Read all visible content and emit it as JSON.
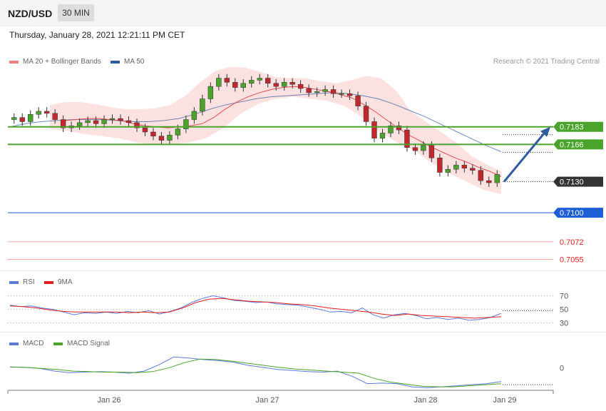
{
  "header": {
    "symbol": "NZD/USD",
    "timeframe": "30 MIN"
  },
  "datetime": "Thursday, January 28, 2021 12:21:11 PM CET",
  "credit": "Research © 2021 Trading Central",
  "legend": {
    "price": [
      {
        "label": "MA 20 + Bollinger Bands",
        "color": "#f08080"
      },
      {
        "label": "MA 50",
        "color": "#2f5c9e"
      }
    ],
    "rsi": [
      {
        "label": "RSI",
        "color": "#5b7bd5"
      },
      {
        "label": "9MA",
        "color": "#e02020"
      }
    ],
    "macd": [
      {
        "label": "MACD",
        "color": "#5b7bd5"
      },
      {
        "label": "MACD Signal",
        "color": "#4aa32a"
      }
    ]
  },
  "chart_data": [
    {
      "type": "line",
      "title": "NZD/USD 30 MIN",
      "x_ticks": [
        "Jan 26",
        "Jan 27",
        "Jan 28",
        "Jan 29"
      ],
      "ylim": [
        0.7045,
        0.724
      ],
      "price_line": 0.713,
      "levels": [
        {
          "label": "0.7183",
          "value": 0.7183,
          "kind": "resistance",
          "color": "#4aa32a"
        },
        {
          "label": "0.7166",
          "value": 0.7166,
          "kind": "resistance",
          "color": "#4aa32a"
        },
        {
          "label": "0.7130",
          "value": 0.713,
          "kind": "last",
          "color": "#333333"
        },
        {
          "label": "0.7100",
          "value": 0.71,
          "kind": "pivot",
          "color": "#1f5fd6"
        },
        {
          "label": "0.7072",
          "value": 0.7072,
          "kind": "support",
          "color": "#e02020"
        },
        {
          "label": "0.7055",
          "value": 0.7055,
          "kind": "support",
          "color": "#e02020"
        }
      ],
      "closes": [
        0.7192,
        0.7188,
        0.7195,
        0.7198,
        0.7196,
        0.719,
        0.7182,
        0.7184,
        0.7187,
        0.7189,
        0.7186,
        0.719,
        0.7191,
        0.7189,
        0.7187,
        0.7182,
        0.7178,
        0.7174,
        0.717,
        0.7175,
        0.7181,
        0.719,
        0.7198,
        0.721,
        0.7222,
        0.723,
        0.7226,
        0.7221,
        0.7225,
        0.7228,
        0.723,
        0.7225,
        0.7222,
        0.7226,
        0.7224,
        0.722,
        0.7216,
        0.7217,
        0.7219,
        0.7215,
        0.7215,
        0.7213,
        0.7203,
        0.7188,
        0.7172,
        0.7177,
        0.7184,
        0.718,
        0.7163,
        0.716,
        0.7165,
        0.7153,
        0.7139,
        0.7142,
        0.7146,
        0.7143,
        0.7141,
        0.7131,
        0.7129,
        0.7137
      ],
      "ma20": [
        0.7189,
        0.719,
        0.7191,
        0.7191,
        0.719,
        0.7189,
        0.7186,
        0.7184,
        0.7183,
        0.7182,
        0.7183,
        0.7184,
        0.7186,
        0.7192,
        0.72,
        0.7207,
        0.7212,
        0.7216,
        0.7219,
        0.7221,
        0.7222,
        0.7221,
        0.7219,
        0.7217,
        0.7214,
        0.7211,
        0.7205,
        0.7198,
        0.719,
        0.7182,
        0.7175,
        0.7169,
        0.7163,
        0.7158,
        0.7153,
        0.7149,
        0.7144,
        0.714,
        0.7135
      ],
      "ma50": [
        0.7183,
        0.7186,
        0.7188,
        0.7189,
        0.719,
        0.719,
        0.719,
        0.7189,
        0.7188,
        0.7188,
        0.7189,
        0.7191,
        0.7195,
        0.72,
        0.7204,
        0.7207,
        0.721,
        0.7212,
        0.7213,
        0.7214,
        0.7215,
        0.7216,
        0.7215,
        0.7213,
        0.721,
        0.7205,
        0.7199,
        0.7193,
        0.7186,
        0.7179,
        0.7172,
        0.7165,
        0.7159
      ],
      "bb_upper": [
        0.7204,
        0.7207,
        0.7207,
        0.7205,
        0.7202,
        0.72,
        0.72,
        0.7201,
        0.7204,
        0.7213,
        0.7226,
        0.7237,
        0.7241,
        0.724,
        0.7236,
        0.7231,
        0.723,
        0.723,
        0.7227,
        0.7225,
        0.7228,
        0.7232,
        0.723,
        0.7218,
        0.7198,
        0.7188,
        0.7178,
        0.7168,
        0.7155,
        0.7147,
        0.714
      ],
      "bb_lower": [
        0.7181,
        0.7179,
        0.7176,
        0.7174,
        0.7172,
        0.7168,
        0.7166,
        0.7166,
        0.7168,
        0.7172,
        0.7182,
        0.7196,
        0.7205,
        0.721,
        0.7212,
        0.721,
        0.7208,
        0.7203,
        0.7192,
        0.7178,
        0.7168,
        0.716,
        0.7148,
        0.7138,
        0.713,
        0.7122,
        0.7118
      ]
    },
    {
      "type": "line",
      "title": "RSI",
      "yticks": [
        70,
        50,
        30
      ],
      "ylim": [
        20,
        80
      ],
      "series": [
        {
          "name": "RSI",
          "values": [
            56,
            54,
            55,
            52,
            50,
            46,
            42,
            45,
            44,
            46,
            44,
            47,
            45,
            48,
            43,
            47,
            52,
            60,
            66,
            70,
            67,
            63,
            62,
            60,
            61,
            58,
            57,
            56,
            53,
            50,
            46,
            47,
            45,
            52,
            42,
            37,
            42,
            44,
            41,
            36,
            38,
            35,
            37,
            34,
            35,
            38,
            44
          ]
        },
        {
          "name": "9MA",
          "values": [
            55,
            54,
            52,
            49,
            47,
            46,
            46,
            46,
            46,
            45,
            46,
            45,
            46,
            52,
            60,
            65,
            66,
            64,
            62,
            61,
            60,
            58,
            57,
            55,
            52,
            50,
            48,
            46,
            43,
            41,
            43,
            41,
            40,
            39,
            38,
            37,
            38,
            39
          ]
        }
      ]
    },
    {
      "type": "line",
      "title": "MACD",
      "yticks": [
        0
      ],
      "ylim": [
        -0.004,
        0.0035
      ],
      "series": [
        {
          "name": "MACD",
          "values": [
            0.0002,
            0.0001,
            -0.0001,
            -0.0006,
            -0.0009,
            -0.0008,
            -0.0007,
            -0.0008,
            -0.001,
            -0.0006,
            0.0006,
            0.0021,
            0.0019,
            0.0016,
            0.0014,
            0.0011,
            0.0005,
            0.0001,
            -0.0003,
            -0.0005,
            -0.0007,
            -0.0008,
            -0.0006,
            -0.0016,
            -0.003,
            -0.0029,
            -0.003,
            -0.0036,
            -0.0038,
            -0.0036,
            -0.0034,
            -0.0032,
            -0.003,
            -0.0026
          ]
        },
        {
          "name": "MACD Signal",
          "values": [
            0.0002,
            0.0001,
            -0.0001,
            -0.0003,
            -0.0006,
            -0.0007,
            -0.0008,
            -0.0008,
            -0.0009,
            -0.0007,
            0.0,
            0.001,
            0.0017,
            0.0016,
            0.0013,
            0.0009,
            0.0005,
            0.0001,
            -0.0002,
            -0.0004,
            -0.0006,
            -0.0008,
            -0.001,
            -0.002,
            -0.0027,
            -0.0031,
            -0.0035,
            -0.0036,
            -0.0036,
            -0.0034,
            -0.0032,
            -0.003
          ]
        }
      ]
    }
  ]
}
